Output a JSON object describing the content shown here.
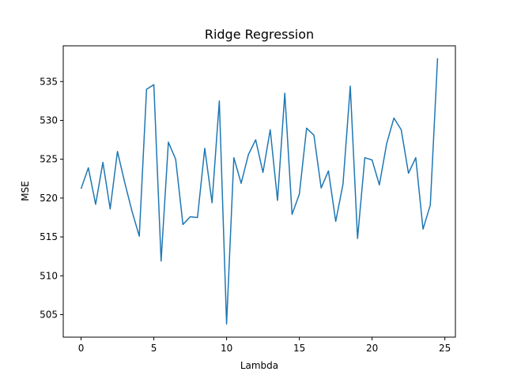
{
  "chart_data": {
    "type": "line",
    "title": "Ridge Regression",
    "xlabel": "Lambda",
    "ylabel": "MSE",
    "xlim": [
      -1.225,
      25.725
    ],
    "ylim": [
      502.1,
      539.6
    ],
    "x_ticks": [
      0,
      5,
      10,
      15,
      20,
      25
    ],
    "y_ticks": [
      505,
      510,
      515,
      520,
      525,
      530,
      535
    ],
    "grid": false,
    "series": [
      {
        "color": "#1f77b4",
        "x": [
          0,
          0.5,
          1,
          1.5,
          2,
          2.5,
          3,
          3.5,
          4,
          4.5,
          5,
          5.5,
          6,
          6.5,
          7,
          7.5,
          8,
          8.5,
          9,
          9.5,
          10,
          10.5,
          11,
          11.5,
          12,
          12.5,
          13,
          13.5,
          14,
          14.5,
          15,
          15.5,
          16,
          16.5,
          17,
          17.5,
          18,
          18.5,
          19,
          19.5,
          20,
          20.5,
          21,
          21.5,
          22,
          22.5,
          23,
          23.5,
          24,
          24.5
        ],
        "values": [
          521.2,
          523.9,
          519.2,
          524.6,
          518.6,
          526.0,
          522.0,
          518.3,
          515.1,
          534.0,
          534.6,
          511.9,
          527.2,
          525.0,
          516.6,
          517.6,
          517.5,
          526.4,
          519.4,
          532.5,
          503.8,
          525.2,
          521.9,
          525.6,
          527.5,
          523.3,
          528.8,
          519.7,
          533.5,
          517.9,
          520.5,
          529.0,
          528.1,
          521.3,
          523.5,
          517.0,
          521.8,
          534.4,
          514.8,
          525.2,
          524.9,
          521.7,
          527.0,
          530.3,
          528.8,
          523.2,
          525.2,
          516.0,
          519.1,
          538.0
        ]
      }
    ]
  }
}
